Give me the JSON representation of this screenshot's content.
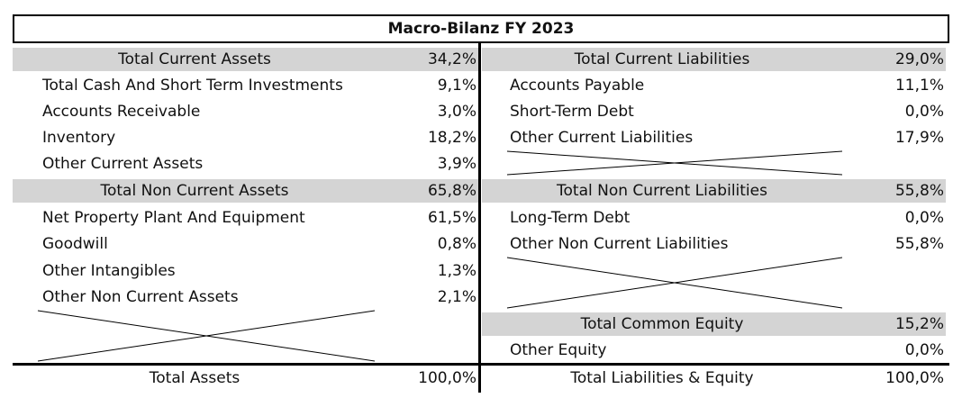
{
  "title": "Macro-Bilanz FY 2023",
  "assets": {
    "current_header": {
      "label": "Total Current Assets",
      "value": "34,2%"
    },
    "current_items": [
      {
        "label": "Total Cash And Short Term Investments",
        "value": "9,1%"
      },
      {
        "label": "Accounts Receivable",
        "value": "3,0%"
      },
      {
        "label": "Inventory",
        "value": "18,2%"
      },
      {
        "label": "Other Current Assets",
        "value": "3,9%"
      }
    ],
    "noncurrent_header": {
      "label": "Total Non Current Assets",
      "value": "65,8%"
    },
    "noncurrent_items": [
      {
        "label": "Net Property Plant And Equipment",
        "value": "61,5%"
      },
      {
        "label": "Goodwill",
        "value": "0,8%"
      },
      {
        "label": "Other Intangibles",
        "value": "1,3%"
      },
      {
        "label": "Other Non Current Assets",
        "value": "2,1%"
      }
    ],
    "total": {
      "label": "Total Assets",
      "value": "100,0%"
    }
  },
  "liabilities": {
    "current_header": {
      "label": "Total Current Liabilities",
      "value": "29,0%"
    },
    "current_items": [
      {
        "label": "Accounts Payable",
        "value": "11,1%"
      },
      {
        "label": "Short-Term Debt",
        "value": "0,0%"
      },
      {
        "label": "Other Current Liabilities",
        "value": "17,9%"
      }
    ],
    "noncurrent_header": {
      "label": "Total Non Current Liabilities",
      "value": "55,8%"
    },
    "noncurrent_items": [
      {
        "label": "Long-Term Debt",
        "value": "0,0%"
      },
      {
        "label": "Other Non Current Liabilities",
        "value": "55,8%"
      }
    ],
    "equity_header": {
      "label": "Total Common Equity",
      "value": "15,2%"
    },
    "equity_items": [
      {
        "label": "Other Equity",
        "value": "0,0%"
      }
    ],
    "total": {
      "label": "Total Liabilities & Equity",
      "value": "100,0%"
    }
  }
}
